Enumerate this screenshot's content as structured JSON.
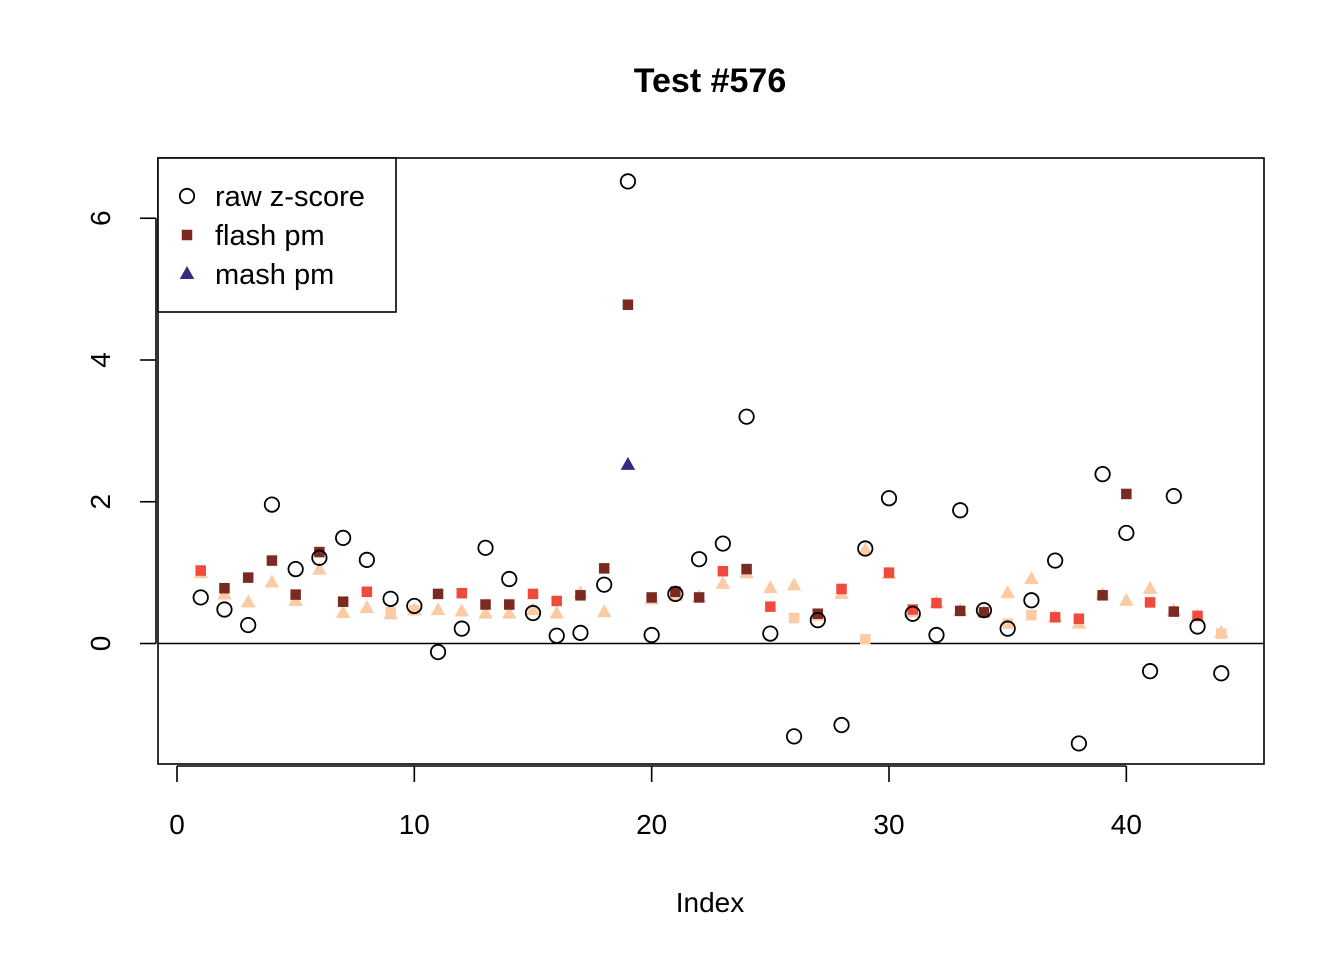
{
  "chart_data": {
    "type": "scatter",
    "title": "Test #576",
    "xlabel": "Index",
    "ylabel": "",
    "xlim": [
      -0.8,
      45.8
    ],
    "ylim": [
      -1.7,
      6.85
    ],
    "xticks": [
      0,
      10,
      20,
      30,
      40
    ],
    "yticks": [
      0,
      2,
      4,
      6
    ],
    "hline": 0,
    "legend": {
      "placement": "top-left",
      "entries": [
        {
          "label": "raw z-score",
          "shape": "open-circle",
          "color": "#000000"
        },
        {
          "label": "flash pm",
          "shape": "filled-square",
          "color": "#7B2A22"
        },
        {
          "label": "mash pm",
          "shape": "filled-triangle",
          "color": "#362A80"
        }
      ]
    },
    "series": [
      {
        "name": "raw z-score",
        "shape": "open-circle",
        "color": "#000000",
        "x": [
          1,
          2,
          3,
          4,
          5,
          6,
          7,
          8,
          9,
          10,
          11,
          12,
          13,
          14,
          15,
          16,
          17,
          18,
          19,
          20,
          21,
          22,
          23,
          24,
          25,
          26,
          27,
          28,
          29,
          30,
          31,
          32,
          33,
          34,
          35,
          36,
          37,
          38,
          39,
          40,
          41,
          42,
          43,
          44
        ],
        "y": [
          0.65,
          0.48,
          0.26,
          1.96,
          1.05,
          1.21,
          1.49,
          1.18,
          0.63,
          0.53,
          -0.12,
          0.21,
          1.35,
          0.91,
          0.43,
          0.11,
          0.15,
          0.83,
          6.52,
          0.12,
          0.7,
          1.19,
          1.41,
          3.2,
          0.14,
          -1.31,
          0.33,
          -1.15,
          1.34,
          2.05,
          0.42,
          0.12,
          1.88,
          0.47,
          0.21,
          0.61,
          1.17,
          -1.41,
          2.39,
          1.56,
          -0.39,
          2.08,
          0.24,
          -0.42
        ]
      },
      {
        "name": "flash pm",
        "shape": "filled-square",
        "x": [
          1,
          2,
          3,
          4,
          5,
          6,
          7,
          8,
          9,
          10,
          11,
          12,
          13,
          14,
          15,
          16,
          17,
          18,
          19,
          20,
          21,
          22,
          23,
          24,
          25,
          26,
          27,
          28,
          29,
          30,
          31,
          32,
          33,
          34,
          35,
          36,
          37,
          38,
          39,
          40,
          41,
          42,
          43,
          44
        ],
        "y": [
          1.03,
          0.78,
          0.93,
          1.17,
          0.69,
          1.29,
          0.59,
          0.73,
          0.44,
          0.47,
          0.7,
          0.71,
          0.55,
          0.55,
          0.7,
          0.6,
          0.68,
          1.06,
          4.78,
          0.65,
          0.73,
          0.65,
          1.02,
          1.05,
          0.52,
          0.36,
          0.42,
          0.77,
          0.06,
          1.0,
          0.48,
          0.57,
          0.46,
          0.44,
          0.28,
          0.4,
          0.37,
          0.35,
          0.68,
          2.11,
          0.58,
          0.45,
          0.39,
          0.14
        ],
        "colors": [
          "#F04A3C",
          "#7B2A22",
          "#7B2A22",
          "#7B2A22",
          "#7B2A22",
          "#7B2A22",
          "#7B2A22",
          "#F04A3C",
          "#FCCBA3",
          "#FCCBA3",
          "#7B2A22",
          "#F04A3C",
          "#7B2A22",
          "#7B2A22",
          "#F04A3C",
          "#F04A3C",
          "#7B2A22",
          "#7B2A22",
          "#7B2A22",
          "#7B2A22",
          "#7B2A22",
          "#7B2A22",
          "#F04A3C",
          "#7B2A22",
          "#F04A3C",
          "#FCCBA3",
          "#7B2A22",
          "#F04A3C",
          "#FCCBA3",
          "#F04A3C",
          "#F04A3C",
          "#F04A3C",
          "#7B2A22",
          "#7B2A22",
          "#FCCBA3",
          "#FCCBA3",
          "#F04A3C",
          "#F04A3C",
          "#7B2A22",
          "#7B2A22",
          "#F04A3C",
          "#7B2A22",
          "#F04A3C",
          "#FCCBA3"
        ]
      },
      {
        "name": "mash pm",
        "shape": "filled-triangle",
        "x": [
          1,
          2,
          3,
          4,
          5,
          6,
          7,
          8,
          9,
          10,
          11,
          12,
          13,
          14,
          15,
          16,
          17,
          18,
          19,
          20,
          21,
          22,
          23,
          24,
          25,
          26,
          27,
          28,
          29,
          30,
          31,
          32,
          33,
          34,
          35,
          36,
          37,
          38,
          39,
          40,
          41,
          42,
          43,
          44
        ],
        "y": [
          0.99,
          0.69,
          0.58,
          0.86,
          0.6,
          1.04,
          0.43,
          0.5,
          0.41,
          0.47,
          0.47,
          0.45,
          0.42,
          0.42,
          0.47,
          0.42,
          0.71,
          0.44,
          2.52,
          0.62,
          0.67,
          0.65,
          0.84,
          0.99,
          0.78,
          0.82,
          0.39,
          0.7,
          1.32,
          0.98,
          0.44,
          0.57,
          0.46,
          0.44,
          0.71,
          0.91,
          0.37,
          0.28,
          0.69,
          0.6,
          0.77,
          0.46,
          0.38,
          0.15
        ],
        "colors": [
          "#FCCBA3",
          "#FCCBA3",
          "#FCCBA3",
          "#FCCBA3",
          "#FCCBA3",
          "#FCCBA3",
          "#FCCBA3",
          "#FCCBA3",
          "#FCCBA3",
          "#FCCBA3",
          "#FCCBA3",
          "#FCCBA3",
          "#FCCBA3",
          "#FCCBA3",
          "#FCCBA3",
          "#FCCBA3",
          "#FCCBA3",
          "#FCCBA3",
          "#362A80",
          "#FCCBA3",
          "#FCCBA3",
          "#FCCBA3",
          "#FCCBA3",
          "#FCCBA3",
          "#FCCBA3",
          "#FCCBA3",
          "#FCCBA3",
          "#FCCBA3",
          "#FCCBA3",
          "#FCCBA3",
          "#FCCBA3",
          "#FCCBA3",
          "#FCCBA3",
          "#FCCBA3",
          "#FCCBA3",
          "#FCCBA3",
          "#FCCBA3",
          "#FCCBA3",
          "#FCCBA3",
          "#FCCBA3",
          "#FCCBA3",
          "#FCCBA3",
          "#FCCBA3",
          "#FCCBA3"
        ]
      }
    ]
  }
}
